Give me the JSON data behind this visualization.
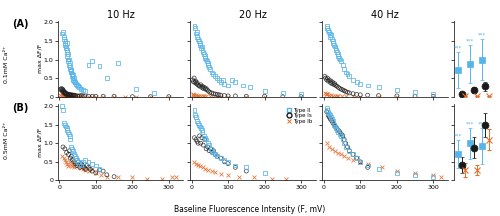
{
  "freq_labels": [
    "10 Hz",
    "20 Hz",
    "40 Hz"
  ],
  "xlabel": "Baseline Fluorescence Intensity (F, mV)",
  "colors": {
    "typeII": "#56B4E9",
    "typeIs": "#1a1a1a",
    "typeIb": "#E07030"
  },
  "ylim": [
    0,
    2.05
  ],
  "xlim": [
    -5,
    340
  ],
  "yticks": [
    0,
    0.5,
    1.0,
    1.5,
    2.0
  ],
  "xticks": [
    0,
    100,
    200,
    300
  ],
  "scatter_A": {
    "10Hz": {
      "typeII_x": [
        8,
        10,
        12,
        14,
        15,
        16,
        17,
        18,
        18,
        20,
        20,
        21,
        22,
        23,
        24,
        25,
        26,
        27,
        28,
        29,
        30,
        31,
        32,
        33,
        34,
        35,
        36,
        37,
        38,
        39,
        40,
        42,
        44,
        46,
        48,
        50,
        52,
        55,
        58,
        60,
        65,
        70,
        80,
        90,
        110,
        130,
        160,
        210,
        260
      ],
      "typeII_y": [
        1.7,
        1.75,
        1.55,
        1.6,
        1.45,
        1.4,
        1.5,
        1.35,
        1.3,
        1.2,
        1.45,
        1.25,
        1.1,
        1.0,
        1.15,
        0.95,
        1.0,
        0.85,
        0.9,
        0.75,
        0.8,
        0.7,
        0.65,
        0.72,
        0.6,
        0.55,
        0.5,
        0.58,
        0.45,
        0.42,
        0.5,
        0.4,
        0.38,
        0.35,
        0.32,
        0.3,
        0.28,
        0.25,
        0.22,
        0.2,
        0.18,
        0.15,
        0.85,
        0.95,
        0.82,
        0.5,
        0.9,
        0.2,
        0.1
      ],
      "typeIs_x": [
        3,
        5,
        6,
        8,
        9,
        10,
        11,
        12,
        14,
        15,
        16,
        17,
        18,
        20,
        22,
        24,
        26,
        28,
        30,
        32,
        34,
        36,
        38,
        40,
        42,
        45,
        50,
        55,
        60,
        65,
        70,
        80,
        90,
        100,
        120,
        150,
        200,
        250,
        300
      ],
      "typeIs_y": [
        0.2,
        0.18,
        0.22,
        0.15,
        0.2,
        0.18,
        0.12,
        0.15,
        0.1,
        0.12,
        0.08,
        0.1,
        0.06,
        0.08,
        0.05,
        0.07,
        0.04,
        0.06,
        0.05,
        0.04,
        0.05,
        0.03,
        0.04,
        0.04,
        0.03,
        0.03,
        0.02,
        0.02,
        0.03,
        0.02,
        0.02,
        0.01,
        0.01,
        0.01,
        0.01,
        0.01,
        0.0,
        0.0,
        0.0
      ],
      "typeIb_x": [
        3,
        5,
        7,
        9,
        10,
        12,
        14,
        15,
        17,
        18,
        20,
        22,
        24,
        26,
        28,
        30,
        32,
        35,
        38,
        40,
        45,
        50,
        55,
        60,
        70,
        80,
        90,
        100,
        120,
        150,
        180,
        210,
        250,
        300
      ],
      "typeIb_y": [
        0.04,
        0.03,
        0.04,
        0.03,
        0.02,
        0.03,
        0.02,
        0.02,
        0.01,
        0.02,
        0.01,
        0.01,
        0.02,
        0.01,
        0.01,
        0.01,
        0.01,
        0.01,
        0.01,
        0.01,
        0.01,
        0.01,
        0.0,
        0.01,
        0.0,
        0.0,
        0.0,
        0.0,
        0.0,
        0.0,
        0.0,
        0.0,
        0.0,
        0.0
      ]
    },
    "20Hz": {
      "typeII_x": [
        8,
        10,
        12,
        14,
        16,
        18,
        20,
        22,
        24,
        26,
        28,
        30,
        32,
        34,
        36,
        38,
        40,
        42,
        44,
        46,
        48,
        50,
        55,
        60,
        65,
        70,
        75,
        80,
        85,
        90,
        100,
        110,
        120,
        140,
        160,
        200,
        250,
        300
      ],
      "typeII_y": [
        1.9,
        1.85,
        1.7,
        1.75,
        1.6,
        1.55,
        1.5,
        1.4,
        1.45,
        1.3,
        1.35,
        1.25,
        1.2,
        1.15,
        1.1,
        1.05,
        1.0,
        0.95,
        0.9,
        0.85,
        0.8,
        0.75,
        0.65,
        0.6,
        0.55,
        0.5,
        0.45,
        0.4,
        0.45,
        0.35,
        0.3,
        0.45,
        0.4,
        0.3,
        0.25,
        0.15,
        0.1,
        0.08
      ],
      "typeIs_x": [
        3,
        5,
        7,
        9,
        11,
        13,
        15,
        17,
        20,
        22,
        25,
        28,
        30,
        32,
        35,
        38,
        40,
        43,
        46,
        50,
        55,
        60,
        65,
        70,
        75,
        80,
        90,
        100,
        120,
        150,
        200,
        250,
        300
      ],
      "typeIs_y": [
        0.45,
        0.4,
        0.5,
        0.38,
        0.42,
        0.35,
        0.38,
        0.32,
        0.3,
        0.28,
        0.32,
        0.25,
        0.28,
        0.22,
        0.25,
        0.2,
        0.22,
        0.18,
        0.15,
        0.12,
        0.1,
        0.08,
        0.07,
        0.06,
        0.05,
        0.04,
        0.03,
        0.02,
        0.02,
        0.01,
        0.01,
        0.0,
        0.0
      ],
      "typeIb_x": [
        3,
        5,
        8,
        10,
        12,
        15,
        18,
        20,
        25,
        30,
        35,
        40,
        50,
        60,
        70,
        80,
        100,
        150,
        200,
        300
      ],
      "typeIb_y": [
        0.06,
        0.05,
        0.04,
        0.03,
        0.04,
        0.03,
        0.02,
        0.02,
        0.01,
        0.01,
        0.01,
        0.01,
        0.01,
        0.0,
        0.0,
        0.0,
        0.0,
        0.0,
        0.0,
        0.0
      ]
    },
    "40Hz": {
      "typeII_x": [
        8,
        10,
        12,
        14,
        16,
        18,
        20,
        22,
        24,
        26,
        28,
        30,
        32,
        34,
        36,
        38,
        40,
        42,
        45,
        48,
        52,
        56,
        60,
        65,
        70,
        80,
        90,
        100,
        120,
        150,
        200,
        250,
        300
      ],
      "typeII_y": [
        1.9,
        1.85,
        1.8,
        1.75,
        1.7,
        1.6,
        1.65,
        1.55,
        1.5,
        1.45,
        1.4,
        1.35,
        1.3,
        1.25,
        1.2,
        1.15,
        1.1,
        1.05,
        1.0,
        0.95,
        0.85,
        0.75,
        0.65,
        0.6,
        0.55,
        0.45,
        0.4,
        0.35,
        0.3,
        0.25,
        0.18,
        0.12,
        0.08
      ],
      "typeIs_x": [
        3,
        5,
        8,
        10,
        12,
        15,
        18,
        20,
        22,
        25,
        28,
        30,
        33,
        36,
        40,
        44,
        48,
        52,
        56,
        60,
        65,
        70,
        80,
        90,
        100,
        120,
        150,
        200,
        250,
        300
      ],
      "typeIs_y": [
        0.55,
        0.5,
        0.45,
        0.5,
        0.42,
        0.45,
        0.38,
        0.42,
        0.35,
        0.38,
        0.32,
        0.35,
        0.3,
        0.28,
        0.25,
        0.22,
        0.2,
        0.18,
        0.16,
        0.14,
        0.12,
        0.1,
        0.08,
        0.06,
        0.05,
        0.04,
        0.03,
        0.02,
        0.01,
        0.01
      ],
      "typeIb_x": [
        3,
        5,
        8,
        10,
        15,
        20,
        25,
        30,
        35,
        40,
        50,
        60,
        80,
        100,
        150,
        200,
        300
      ],
      "typeIb_y": [
        0.1,
        0.08,
        0.07,
        0.06,
        0.05,
        0.04,
        0.03,
        0.03,
        0.02,
        0.02,
        0.01,
        0.01,
        0.01,
        0.0,
        0.0,
        0.0,
        0.0
      ]
    }
  },
  "scatter_B": {
    "10Hz": {
      "typeII_x": [
        8,
        10,
        12,
        15,
        18,
        20,
        22,
        24,
        26,
        28,
        30,
        32,
        35,
        38,
        40,
        42,
        45,
        48,
        50,
        55,
        60,
        65,
        70,
        80,
        90,
        100,
        110
      ],
      "typeII_y": [
        2.0,
        1.9,
        1.55,
        1.5,
        1.45,
        1.4,
        1.35,
        1.3,
        1.25,
        1.2,
        1.1,
        0.9,
        0.85,
        0.8,
        0.7,
        0.65,
        0.6,
        0.55,
        0.5,
        0.45,
        0.4,
        0.5,
        0.55,
        0.5,
        0.45,
        0.4,
        0.3
      ],
      "typeIs_x": [
        10,
        15,
        20,
        25,
        28,
        30,
        33,
        36,
        40,
        44,
        48,
        52,
        56,
        60,
        64,
        68,
        72,
        76,
        80,
        85,
        90,
        100,
        110,
        120,
        130,
        150
      ],
      "typeIs_y": [
        0.9,
        0.85,
        0.75,
        0.7,
        0.8,
        0.6,
        0.65,
        0.55,
        0.5,
        0.45,
        0.4,
        0.5,
        0.35,
        0.45,
        0.4,
        0.35,
        0.3,
        0.4,
        0.35,
        0.3,
        0.25,
        0.2,
        0.28,
        0.25,
        0.15,
        0.1
      ],
      "typeIb_x": [
        8,
        12,
        15,
        18,
        22,
        25,
        28,
        32,
        36,
        40,
        44,
        48,
        52,
        56,
        60,
        65,
        70,
        80,
        90,
        100,
        115,
        130,
        160,
        200,
        240,
        280,
        310,
        320
      ],
      "typeIb_y": [
        0.65,
        0.6,
        0.55,
        0.5,
        0.45,
        0.4,
        0.5,
        0.42,
        0.38,
        0.35,
        0.45,
        0.4,
        0.42,
        0.35,
        0.32,
        0.3,
        0.28,
        0.25,
        0.3,
        0.2,
        0.15,
        0.1,
        0.1,
        0.08,
        0.05,
        0.05,
        0.08,
        0.1
      ]
    },
    "20Hz": {
      "typeII_x": [
        8,
        10,
        12,
        15,
        18,
        20,
        22,
        25,
        28,
        30,
        33,
        36,
        40,
        44,
        48,
        52,
        56,
        60,
        65,
        70,
        80,
        90,
        100,
        120,
        150,
        200
      ],
      "typeII_y": [
        1.9,
        1.75,
        1.7,
        1.6,
        1.55,
        1.5,
        1.45,
        1.4,
        1.35,
        1.3,
        1.2,
        1.15,
        1.1,
        1.0,
        0.95,
        0.85,
        0.8,
        0.75,
        0.7,
        0.65,
        0.6,
        0.55,
        0.5,
        0.4,
        0.35,
        0.2
      ],
      "typeIs_x": [
        8,
        12,
        15,
        18,
        22,
        25,
        28,
        32,
        36,
        40,
        44,
        48,
        52,
        56,
        60,
        65,
        70,
        80,
        90,
        100,
        120,
        150
      ],
      "typeIs_y": [
        1.15,
        1.1,
        1.05,
        1.0,
        1.2,
        1.0,
        1.15,
        0.95,
        1.1,
        0.85,
        0.9,
        0.8,
        0.85,
        0.75,
        0.8,
        0.7,
        0.65,
        0.6,
        0.5,
        0.45,
        0.35,
        0.25
      ],
      "typeIb_x": [
        8,
        12,
        18,
        24,
        30,
        38,
        46,
        55,
        65,
        80,
        100,
        130,
        170,
        220,
        260
      ],
      "typeIb_y": [
        0.5,
        0.45,
        0.42,
        0.38,
        0.35,
        0.3,
        0.28,
        0.25,
        0.22,
        0.18,
        0.15,
        0.1,
        0.08,
        0.05,
        0.03
      ]
    },
    "40Hz": {
      "typeII_x": [
        8,
        10,
        12,
        15,
        18,
        20,
        22,
        25,
        28,
        30,
        33,
        36,
        40,
        44,
        48,
        52,
        56,
        60,
        70,
        80,
        90,
        100,
        120,
        150,
        200,
        250,
        300
      ],
      "typeII_y": [
        1.95,
        1.9,
        1.85,
        1.8,
        1.75,
        1.7,
        1.65,
        1.6,
        1.5,
        1.45,
        1.4,
        1.35,
        1.3,
        1.25,
        1.2,
        1.1,
        1.0,
        0.9,
        0.8,
        0.7,
        0.6,
        0.5,
        0.4,
        0.3,
        0.2,
        0.15,
        0.1
      ],
      "typeIs_x": [
        8,
        12,
        15,
        18,
        22,
        25,
        28,
        32,
        36,
        40,
        44,
        48,
        52,
        56,
        60,
        65,
        70,
        80,
        90,
        100,
        120
      ],
      "typeIs_y": [
        1.85,
        1.75,
        1.7,
        1.65,
        1.6,
        1.55,
        1.5,
        1.45,
        1.4,
        1.35,
        1.3,
        1.25,
        1.2,
        1.1,
        1.0,
        0.9,
        0.8,
        0.7,
        0.6,
        0.5,
        0.35
      ],
      "typeIb_x": [
        8,
        15,
        22,
        30,
        38,
        46,
        56,
        66,
        80,
        100,
        120,
        160,
        200,
        250,
        300,
        320
      ],
      "typeIb_y": [
        1.0,
        0.9,
        0.85,
        0.8,
        0.75,
        0.7,
        0.65,
        0.6,
        0.55,
        0.5,
        0.45,
        0.35,
        0.25,
        0.2,
        0.15,
        0.1
      ]
    }
  },
  "summary_A": {
    "typeII_mean": [
      0.72,
      0.88,
      1.0
    ],
    "typeII_sd": [
      0.48,
      0.52,
      0.56
    ],
    "typeIs_mean": [
      0.07,
      0.18,
      0.28
    ],
    "typeIs_sd": [
      0.05,
      0.08,
      0.12
    ],
    "typeIb_mean": [
      0.01,
      0.01,
      0.02
    ],
    "typeIb_sd": [
      0.005,
      0.005,
      0.01
    ],
    "typeII_stars": "***",
    "typeIs_stars": "**",
    "typeIb_stars": ""
  },
  "summary_B": {
    "typeII_mean": [
      0.7,
      1.0,
      0.92
    ],
    "typeII_sd": [
      0.38,
      0.42,
      0.48
    ],
    "typeIs_mean": [
      0.42,
      0.88,
      1.5
    ],
    "typeIs_sd": [
      0.22,
      0.28,
      0.32
    ],
    "typeIb_mean": [
      0.28,
      0.28,
      1.1
    ],
    "typeIb_sd": [
      0.18,
      0.14,
      0.28
    ],
    "typeII_stars": "***",
    "typeIs_stars": "***",
    "typeIb_stars": ""
  }
}
